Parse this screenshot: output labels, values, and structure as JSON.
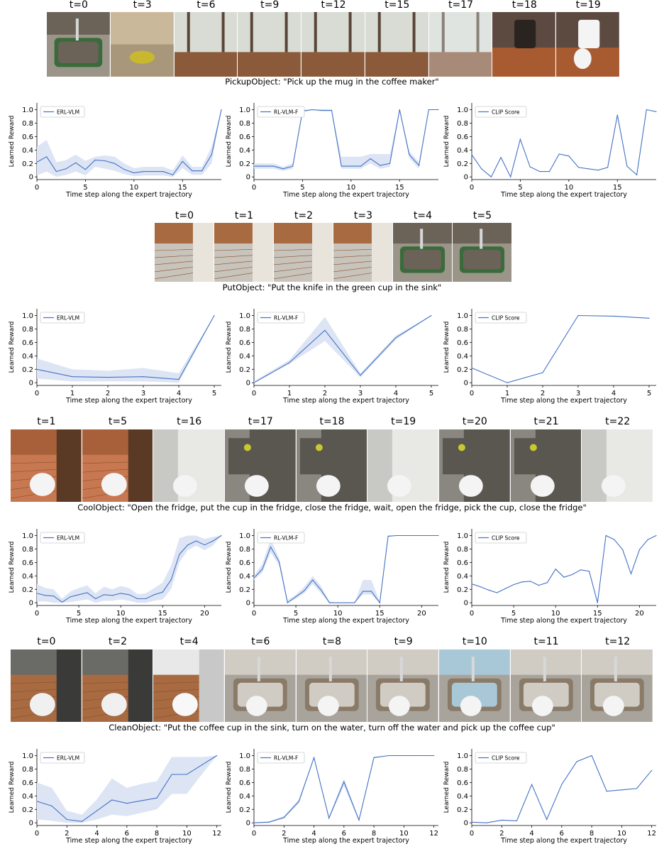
{
  "rows": [
    {
      "task_caption": "PickupObject: \"Pick up the mug in the coffee maker\"",
      "frame_labels": [
        "t=0",
        "t=3",
        "t=6",
        "t=9",
        "t=12",
        "t=15",
        "t=17",
        "t=18",
        "t=19"
      ],
      "frame_scenes": [
        "sink-overhead",
        "counter-closeup",
        "window-floor",
        "window-floor",
        "window-floor",
        "window-floor",
        "window-blur",
        "coffee-maker",
        "coffee-maker-mug"
      ]
    },
    {
      "task_caption": "PutObject: \"Put the knife in the green cup in the sink\"",
      "frame_labels": [
        "t=0",
        "t=1",
        "t=2",
        "t=3",
        "t=4",
        "t=5"
      ],
      "frame_scenes": [
        "kitchen-counter",
        "kitchen-counter",
        "kitchen-counter",
        "kitchen-counter",
        "sink-overhead",
        "sink-overhead"
      ]
    },
    {
      "task_caption": "CoolObject: \"Open the fridge, put the cup in the fridge, close the fridge, wait, open the fridge, pick the cup, close the fridge\"",
      "frame_labels": [
        "t=1",
        "t=5",
        "t=16",
        "t=17",
        "t=18",
        "t=19",
        "t=20",
        "t=21",
        "t=22"
      ],
      "frame_scenes": [
        "floor-mug",
        "floor-mug",
        "fridge-closed",
        "fridge-open",
        "fridge-open",
        "fridge-closed",
        "fridge-open",
        "fridge-open",
        "fridge-closed"
      ]
    },
    {
      "task_caption": "CleanObject: \"Put the coffee cup in the sink, turn on the water, turn off the water and pick up the coffee cup\"",
      "frame_labels": [
        "t=0",
        "t=2",
        "t=4",
        "t=6",
        "t=8",
        "t=9",
        "t=10",
        "t=11",
        "t=12"
      ],
      "frame_scenes": [
        "kitchen-mug",
        "kitchen-mug",
        "bright-mug",
        "sink-mug",
        "sink-mug",
        "sink-mug",
        "sink-water",
        "sink-mug",
        "sink-mug"
      ]
    }
  ],
  "colors": {
    "line": "#4472c4",
    "band": "#dde5f5"
  },
  "chart_data": [
    {
      "type": "line",
      "row": 0,
      "legend": "ERL-VLM",
      "xlabel": "Time step along the expert trajectory",
      "ylabel": "Learned Reward",
      "xlim": [
        0,
        19
      ],
      "ylim": [
        0,
        1
      ],
      "xticks": [
        0,
        5,
        10,
        15
      ],
      "yticks": [
        "0",
        "0.2",
        "0.4",
        "0.6",
        "0.8",
        "1.0"
      ],
      "x": [
        0,
        1,
        2,
        3,
        4,
        5,
        6,
        7,
        8,
        9,
        10,
        11,
        12,
        13,
        14,
        15,
        16,
        17,
        18,
        19
      ],
      "y": [
        0.22,
        0.3,
        0.08,
        0.12,
        0.21,
        0.11,
        0.25,
        0.24,
        0.2,
        0.11,
        0.06,
        0.08,
        0.08,
        0.08,
        0.03,
        0.23,
        0.09,
        0.09,
        0.33,
        1.0
      ],
      "band_low": [
        0.02,
        0.08,
        0.0,
        0.03,
        0.08,
        0.02,
        0.15,
        0.12,
        0.09,
        0.04,
        0.01,
        0.02,
        0.02,
        0.02,
        0.0,
        0.13,
        0.03,
        0.03,
        0.2,
        1.0
      ],
      "band_high": [
        0.45,
        0.55,
        0.22,
        0.25,
        0.33,
        0.24,
        0.3,
        0.32,
        0.3,
        0.2,
        0.13,
        0.15,
        0.15,
        0.15,
        0.1,
        0.32,
        0.15,
        0.15,
        0.45,
        1.0
      ]
    },
    {
      "type": "line",
      "row": 0,
      "legend": "RL-VLM-F",
      "xlabel": "Time step along the expert trajectory",
      "ylabel": "Learned Reward",
      "xlim": [
        0,
        19
      ],
      "ylim": [
        0,
        1
      ],
      "xticks": [
        0,
        5,
        10,
        15
      ],
      "yticks": [
        "0",
        "0.2",
        "0.4",
        "0.6",
        "0.8",
        "1.0"
      ],
      "x": [
        0,
        1,
        2,
        3,
        4,
        5,
        6,
        7,
        8,
        9,
        10,
        11,
        12,
        13,
        14,
        15,
        16,
        17,
        18,
        19
      ],
      "y": [
        0.16,
        0.16,
        0.16,
        0.12,
        0.16,
        0.98,
        1.0,
        0.99,
        0.99,
        0.16,
        0.16,
        0.16,
        0.27,
        0.17,
        0.2,
        1.0,
        0.33,
        0.17,
        1.0,
        1.0
      ],
      "band_low": [
        0.12,
        0.12,
        0.12,
        0.09,
        0.12,
        0.96,
        0.99,
        0.97,
        0.97,
        0.12,
        0.12,
        0.12,
        0.2,
        0.12,
        0.15,
        0.99,
        0.28,
        0.12,
        1.0,
        1.0
      ],
      "band_high": [
        0.2,
        0.2,
        0.2,
        0.15,
        0.2,
        1.0,
        1.0,
        1.0,
        1.0,
        0.3,
        0.3,
        0.3,
        0.34,
        0.34,
        0.34,
        1.0,
        0.38,
        0.22,
        1.0,
        1.0
      ]
    },
    {
      "type": "line",
      "row": 0,
      "legend": "CLIP Score",
      "xlabel": "Time step along the expert trajectory",
      "ylabel": "Learned Reward",
      "xlim": [
        0,
        19
      ],
      "ylim": [
        0,
        1
      ],
      "xticks": [
        0,
        5,
        10,
        15
      ],
      "yticks": [
        "0",
        "0.2",
        "0.4",
        "0.6",
        "0.8",
        "1.0"
      ],
      "x": [
        0,
        1,
        2,
        3,
        4,
        5,
        6,
        7,
        8,
        9,
        10,
        11,
        12,
        13,
        14,
        15,
        16,
        17,
        18,
        19
      ],
      "y": [
        0.33,
        0.12,
        0.0,
        0.29,
        0.0,
        0.56,
        0.15,
        0.08,
        0.08,
        0.34,
        0.31,
        0.14,
        0.12,
        0.1,
        0.14,
        0.92,
        0.16,
        0.03,
        1.0,
        0.97
      ]
    },
    {
      "type": "line",
      "row": 1,
      "legend": "ERL-VLM",
      "xlabel": "Time step along the expert trajectory",
      "ylabel": "Learned Reward",
      "xlim": [
        0,
        5.2
      ],
      "ylim": [
        0,
        1
      ],
      "xticks": [
        0,
        1,
        2,
        3,
        4,
        5
      ],
      "yticks": [
        "0",
        "0.2",
        "0.4",
        "0.6",
        "0.8",
        "1.0"
      ],
      "x": [
        0,
        1,
        2,
        3,
        4,
        5
      ],
      "y": [
        0.2,
        0.09,
        0.08,
        0.09,
        0.05,
        1.0
      ],
      "band_low": [
        0.06,
        0.02,
        0.02,
        0.02,
        0.0,
        1.0
      ],
      "band_high": [
        0.36,
        0.2,
        0.18,
        0.22,
        0.14,
        1.0
      ]
    },
    {
      "type": "line",
      "row": 1,
      "legend": "RL-VLM-F",
      "xlabel": "Time step along the expert trajectory",
      "ylabel": "Learned Reward",
      "xlim": [
        0,
        5.2
      ],
      "ylim": [
        0,
        1
      ],
      "xticks": [
        0,
        1,
        2,
        3,
        4,
        5
      ],
      "yticks": [
        "0",
        "0.2",
        "0.4",
        "0.6",
        "0.8",
        "1.0"
      ],
      "x": [
        0,
        1,
        2,
        3,
        4,
        5
      ],
      "y": [
        0.0,
        0.3,
        0.78,
        0.11,
        0.67,
        1.0
      ],
      "band_low": [
        0.0,
        0.28,
        0.62,
        0.08,
        0.64,
        1.0
      ],
      "band_high": [
        0.02,
        0.34,
        0.98,
        0.14,
        0.7,
        1.0
      ]
    },
    {
      "type": "line",
      "row": 1,
      "legend": "CLIP Score",
      "xlabel": "Time step along the expert trajectory",
      "ylabel": "Learned Reward",
      "xlim": [
        0,
        5.2
      ],
      "ylim": [
        0,
        1
      ],
      "xticks": [
        0,
        1,
        2,
        3,
        4,
        5
      ],
      "yticks": [
        "0",
        "0.2",
        "0.4",
        "0.6",
        "0.8",
        "1.0"
      ],
      "x": [
        0,
        1,
        2,
        3,
        4,
        5
      ],
      "y": [
        0.22,
        0.0,
        0.15,
        1.0,
        0.99,
        0.96
      ]
    },
    {
      "type": "line",
      "row": 2,
      "legend": "ERL-VLM",
      "xlabel": "Time step along the expert trajectory",
      "ylabel": "Learned Reward",
      "xlim": [
        0,
        22
      ],
      "ylim": [
        0,
        1
      ],
      "xticks": [
        0,
        5,
        10,
        15,
        20
      ],
      "yticks": [
        "0",
        "0.2",
        "0.4",
        "0.6",
        "0.8",
        "1.0"
      ],
      "x": [
        0,
        1,
        2,
        3,
        4,
        5,
        6,
        7,
        8,
        9,
        10,
        11,
        12,
        13,
        14,
        15,
        16,
        17,
        18,
        19,
        20,
        21,
        22
      ],
      "y": [
        0.14,
        0.11,
        0.1,
        0.01,
        0.09,
        0.12,
        0.15,
        0.06,
        0.12,
        0.11,
        0.14,
        0.12,
        0.06,
        0.06,
        0.12,
        0.16,
        0.34,
        0.72,
        0.86,
        0.92,
        0.86,
        0.92,
        1.0
      ],
      "band_low": [
        0.02,
        0.02,
        0.0,
        0.0,
        0.01,
        0.03,
        0.05,
        0.0,
        0.03,
        0.03,
        0.05,
        0.03,
        0.0,
        0.0,
        0.03,
        0.05,
        0.2,
        0.6,
        0.78,
        0.85,
        0.78,
        0.85,
        1.0
      ],
      "band_high": [
        0.28,
        0.22,
        0.2,
        0.06,
        0.17,
        0.22,
        0.26,
        0.14,
        0.24,
        0.2,
        0.25,
        0.22,
        0.13,
        0.14,
        0.22,
        0.3,
        0.55,
        0.96,
        1.0,
        1.0,
        0.95,
        0.98,
        1.0
      ]
    },
    {
      "type": "line",
      "row": 2,
      "legend": "RL-VLM-F",
      "xlabel": "Time step along the expert trajectory",
      "ylabel": "Learned Reward",
      "xlim": [
        0,
        22
      ],
      "ylim": [
        0,
        1
      ],
      "xticks": [
        0,
        5,
        10,
        15,
        20
      ],
      "yticks": [
        "0",
        "0.2",
        "0.4",
        "0.6",
        "0.8",
        "1.0"
      ],
      "x": [
        0,
        1,
        2,
        3,
        4,
        5,
        6,
        7,
        8,
        9,
        10,
        11,
        12,
        13,
        14,
        15,
        16,
        17,
        18,
        19,
        20,
        21,
        22
      ],
      "y": [
        0.37,
        0.5,
        0.83,
        0.61,
        0.0,
        0.09,
        0.18,
        0.34,
        0.19,
        0.0,
        0.0,
        0.0,
        0.0,
        0.17,
        0.17,
        0.0,
        0.99,
        1.0,
        1.0,
        1.0,
        1.0,
        1.0,
        1.0
      ],
      "band_low": [
        0.34,
        0.45,
        0.75,
        0.55,
        0.0,
        0.06,
        0.14,
        0.28,
        0.14,
        0.0,
        0.0,
        0.0,
        0.0,
        0.12,
        0.12,
        0.0,
        0.98,
        1.0,
        1.0,
        1.0,
        1.0,
        1.0,
        1.0
      ],
      "band_high": [
        0.4,
        0.58,
        0.95,
        0.66,
        0.04,
        0.12,
        0.24,
        0.4,
        0.25,
        0.02,
        0.0,
        0.0,
        0.0,
        0.34,
        0.34,
        0.02,
        1.0,
        1.0,
        1.0,
        1.0,
        1.0,
        1.0,
        1.0
      ]
    },
    {
      "type": "line",
      "row": 2,
      "legend": "CLIP Score",
      "xlabel": "Time step along the expert trajectory",
      "ylabel": "Learned Reward",
      "xlim": [
        0,
        22
      ],
      "ylim": [
        0,
        1
      ],
      "xticks": [
        0,
        5,
        10,
        15,
        20
      ],
      "yticks": [
        "0",
        "0.2",
        "0.4",
        "0.6",
        "0.8",
        "1.0"
      ],
      "x": [
        0,
        1,
        2,
        3,
        4,
        5,
        6,
        7,
        8,
        9,
        10,
        11,
        12,
        13,
        14,
        15,
        16,
        17,
        18,
        19,
        20,
        21,
        22
      ],
      "y": [
        0.28,
        0.24,
        0.19,
        0.15,
        0.21,
        0.27,
        0.31,
        0.32,
        0.26,
        0.3,
        0.5,
        0.38,
        0.42,
        0.49,
        0.47,
        0.0,
        1.0,
        0.94,
        0.79,
        0.43,
        0.79,
        0.94,
        1.0
      ]
    },
    {
      "type": "line",
      "row": 3,
      "legend": "ERL-VLM",
      "xlabel": "Time step along the expert trajectory",
      "ylabel": "Learned Reward",
      "xlim": [
        0,
        12.3
      ],
      "ylim": [
        0,
        1
      ],
      "xticks": [
        0,
        2,
        4,
        6,
        8,
        10,
        12
      ],
      "yticks": [
        "0",
        "0.2",
        "0.4",
        "0.6",
        "0.8",
        "1.0"
      ],
      "x": [
        0,
        1,
        2,
        3,
        4,
        5,
        6,
        7,
        8,
        9,
        10,
        11,
        12
      ],
      "y": [
        0.32,
        0.25,
        0.05,
        0.02,
        0.18,
        0.34,
        0.29,
        0.33,
        0.37,
        0.72,
        0.72,
        0.86,
        1.0
      ],
      "band_low": [
        0.05,
        0.03,
        0.0,
        0.0,
        0.05,
        0.12,
        0.1,
        0.15,
        0.2,
        0.43,
        0.43,
        0.72,
        1.0
      ],
      "band_high": [
        0.6,
        0.52,
        0.18,
        0.12,
        0.35,
        0.66,
        0.52,
        0.58,
        0.62,
        0.98,
        0.98,
        0.98,
        1.0
      ]
    },
    {
      "type": "line",
      "row": 3,
      "legend": "RL-VLM-F",
      "xlabel": "Time step along the expert trajectory",
      "ylabel": "Learned Reward",
      "xlim": [
        0,
        12.3
      ],
      "ylim": [
        0,
        1
      ],
      "xticks": [
        0,
        2,
        4,
        6,
        8,
        10,
        12
      ],
      "yticks": [
        "0",
        "0.2",
        "0.4",
        "0.6",
        "0.8",
        "1.0"
      ],
      "x": [
        0,
        1,
        2,
        3,
        4,
        5,
        6,
        7,
        8,
        9,
        10,
        11,
        12
      ],
      "y": [
        0.0,
        0.01,
        0.08,
        0.32,
        0.97,
        0.07,
        0.61,
        0.04,
        0.97,
        1.0,
        1.0,
        1.0,
        1.0
      ],
      "band_low": [
        0.0,
        0.0,
        0.06,
        0.29,
        0.96,
        0.05,
        0.55,
        0.02,
        0.96,
        1.0,
        1.0,
        1.0,
        1.0
      ],
      "band_high": [
        0.01,
        0.02,
        0.1,
        0.35,
        0.98,
        0.09,
        0.66,
        0.06,
        0.98,
        1.0,
        1.0,
        1.0,
        1.0
      ]
    },
    {
      "type": "line",
      "row": 3,
      "legend": "CLIP Score",
      "xlabel": "Time step along the expert trajectory",
      "ylabel": "Learned Reward",
      "xlim": [
        0,
        12.3
      ],
      "ylim": [
        0,
        1
      ],
      "xticks": [
        0,
        2,
        4,
        6,
        8,
        10,
        12
      ],
      "yticks": [
        "0",
        "0.2",
        "0.4",
        "0.6",
        "0.8",
        "1.0"
      ],
      "x": [
        0,
        1,
        2,
        3,
        4,
        5,
        6,
        7,
        8,
        9,
        10,
        11,
        12
      ],
      "y": [
        0.01,
        0.0,
        0.04,
        0.03,
        0.57,
        0.05,
        0.57,
        0.91,
        1.0,
        0.47,
        0.49,
        0.51,
        0.78
      ]
    }
  ]
}
